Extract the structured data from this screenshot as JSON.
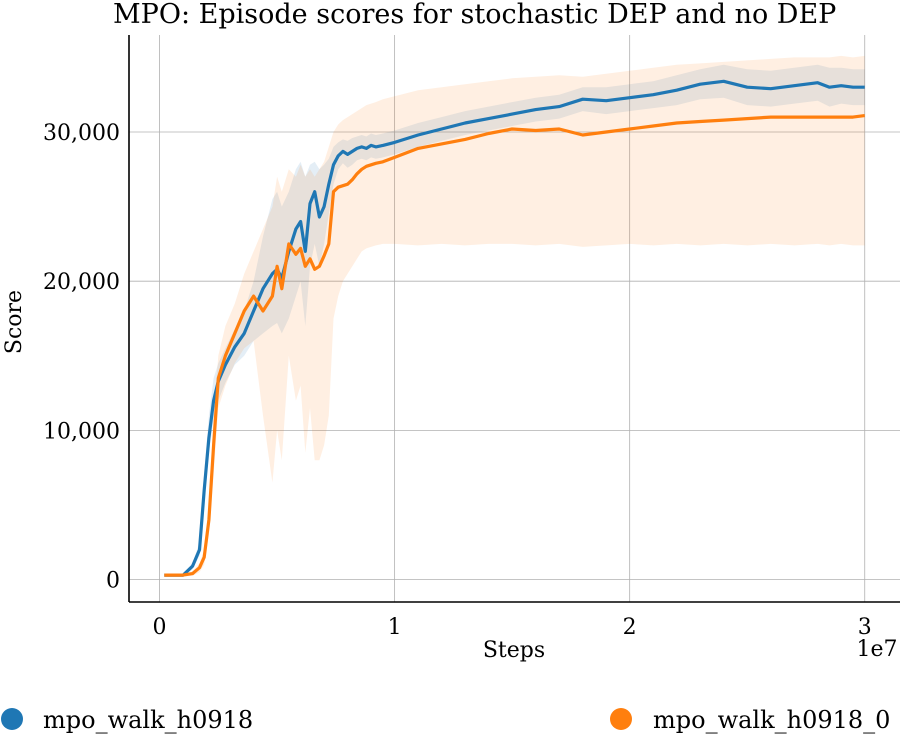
{
  "chart_data": {
    "type": "line",
    "title": "MPO: Episode scores for stochastic DEP and no DEP",
    "xlabel": "Steps",
    "ylabel": "Score",
    "x_multiplier_label": "1e7",
    "xlim": [
      -0.13,
      3.15
    ],
    "ylim": [
      -1500,
      36500
    ],
    "xticks": [
      0,
      1,
      2,
      3
    ],
    "xtick_labels": [
      "0",
      "1",
      "2",
      "3"
    ],
    "yticks": [
      0,
      10000,
      20000,
      30000
    ],
    "ytick_labels": [
      "0",
      "10,000",
      "20,000",
      "30,000"
    ],
    "grid": true,
    "legend_placement": "bottom",
    "series": [
      {
        "name": "mpo_walk_h0918",
        "color": "#1f77b4",
        "x": [
          0.02,
          0.1,
          0.14,
          0.17,
          0.19,
          0.21,
          0.23,
          0.25,
          0.28,
          0.32,
          0.36,
          0.4,
          0.44,
          0.48,
          0.5,
          0.52,
          0.55,
          0.58,
          0.6,
          0.62,
          0.64,
          0.66,
          0.68,
          0.7,
          0.72,
          0.74,
          0.76,
          0.78,
          0.8,
          0.82,
          0.84,
          0.86,
          0.88,
          0.9,
          0.92,
          0.95,
          1.0,
          1.1,
          1.2,
          1.3,
          1.4,
          1.5,
          1.6,
          1.7,
          1.8,
          1.9,
          2.0,
          2.1,
          2.2,
          2.3,
          2.4,
          2.5,
          2.6,
          2.7,
          2.8,
          2.85,
          2.9,
          2.95,
          3.0
        ],
        "y": [
          300,
          300,
          900,
          2000,
          6000,
          9500,
          12000,
          13300,
          14400,
          15600,
          16500,
          18000,
          19500,
          20500,
          20800,
          20200,
          22000,
          23500,
          24000,
          22000,
          25200,
          26000,
          24300,
          25000,
          26500,
          27800,
          28400,
          28700,
          28500,
          28700,
          28900,
          29000,
          28900,
          29100,
          29000,
          29100,
          29300,
          29800,
          30200,
          30600,
          30900,
          31200,
          31500,
          31700,
          32200,
          32100,
          32300,
          32500,
          32800,
          33200,
          33400,
          33000,
          32900,
          33100,
          33300,
          33000,
          33100,
          33000,
          33000
        ],
        "band_upper": [
          400,
          400,
          1100,
          2500,
          7200,
          11000,
          13500,
          14500,
          15500,
          16800,
          18000,
          20000,
          23000,
          25500,
          26000,
          25000,
          26000,
          27500,
          28000,
          27000,
          27800,
          28000,
          27500,
          27800,
          28200,
          29000,
          29300,
          29500,
          29400,
          29600,
          29700,
          29800,
          29700,
          29900,
          29800,
          29900,
          30100,
          30600,
          31000,
          31400,
          31700,
          32000,
          32300,
          32500,
          33000,
          33000,
          33200,
          33400,
          33800,
          34200,
          34500,
          34200,
          34100,
          34300,
          34500,
          34300,
          34300,
          34200,
          34200
        ],
        "band_lower": [
          200,
          200,
          700,
          1600,
          5000,
          8500,
          10800,
          12000,
          13200,
          14400,
          15000,
          16000,
          16500,
          17000,
          17200,
          16500,
          17500,
          19000,
          20000,
          17000,
          21000,
          22500,
          21000,
          22500,
          24500,
          26500,
          27500,
          27900,
          27600,
          27800,
          28100,
          28200,
          28100,
          28300,
          28200,
          28300,
          28500,
          29000,
          29400,
          29800,
          30100,
          30400,
          30700,
          30900,
          31400,
          31200,
          31400,
          31600,
          31800,
          32200,
          32300,
          31800,
          31700,
          31900,
          32100,
          31700,
          31900,
          31800,
          31800
        ]
      },
      {
        "name": "mpo_walk_h0918_0",
        "color": "#ff7f0e",
        "x": [
          0.02,
          0.1,
          0.14,
          0.17,
          0.19,
          0.21,
          0.23,
          0.25,
          0.28,
          0.32,
          0.36,
          0.4,
          0.44,
          0.48,
          0.5,
          0.52,
          0.55,
          0.58,
          0.6,
          0.62,
          0.64,
          0.66,
          0.68,
          0.7,
          0.72,
          0.74,
          0.76,
          0.78,
          0.8,
          0.82,
          0.84,
          0.86,
          0.88,
          0.9,
          0.92,
          0.95,
          1.0,
          1.1,
          1.2,
          1.3,
          1.4,
          1.5,
          1.6,
          1.7,
          1.8,
          1.9,
          2.0,
          2.1,
          2.2,
          2.3,
          2.4,
          2.5,
          2.6,
          2.7,
          2.8,
          2.85,
          2.9,
          2.95,
          3.0
        ],
        "y": [
          300,
          300,
          400,
          800,
          1500,
          4000,
          9000,
          13500,
          15000,
          16500,
          18000,
          19000,
          18000,
          19000,
          21000,
          19500,
          22500,
          21800,
          22200,
          21000,
          21500,
          20800,
          21000,
          21700,
          22500,
          26000,
          26300,
          26400,
          26500,
          26800,
          27200,
          27500,
          27700,
          27800,
          27900,
          28000,
          28300,
          28900,
          29200,
          29500,
          29900,
          30200,
          30100,
          30200,
          29800,
          30000,
          30200,
          30400,
          30600,
          30700,
          30800,
          30900,
          31000,
          31000,
          31000,
          31000,
          31000,
          31000,
          31100
        ],
        "band_upper": [
          400,
          400,
          550,
          1100,
          2000,
          5000,
          11000,
          15000,
          17000,
          18500,
          20500,
          22000,
          23500,
          25000,
          27000,
          26000,
          27500,
          27000,
          27800,
          27000,
          27500,
          27000,
          27500,
          28000,
          29000,
          30000,
          30500,
          30800,
          31000,
          31200,
          31400,
          31600,
          31800,
          31900,
          32000,
          32200,
          32400,
          32800,
          33000,
          33200,
          33400,
          33600,
          33700,
          33800,
          33700,
          33900,
          34100,
          34300,
          34500,
          34600,
          34700,
          34800,
          34900,
          35000,
          35000,
          35000,
          35100,
          35000,
          35100
        ],
        "band_lower": [
          200,
          200,
          250,
          500,
          1000,
          3000,
          7000,
          11500,
          13000,
          14500,
          15500,
          16000,
          11000,
          6500,
          10000,
          8000,
          15000,
          12000,
          13000,
          8500,
          11500,
          8000,
          8000,
          9000,
          11000,
          17500,
          19000,
          20000,
          20500,
          21000,
          21500,
          22000,
          22200,
          22300,
          22400,
          22500,
          22500,
          22400,
          22500,
          22400,
          22500,
          22500,
          22400,
          22500,
          22300,
          22400,
          22500,
          22400,
          22500,
          22400,
          22500,
          22400,
          22500,
          22400,
          22500,
          22400,
          22500,
          22400,
          22400
        ]
      }
    ]
  }
}
